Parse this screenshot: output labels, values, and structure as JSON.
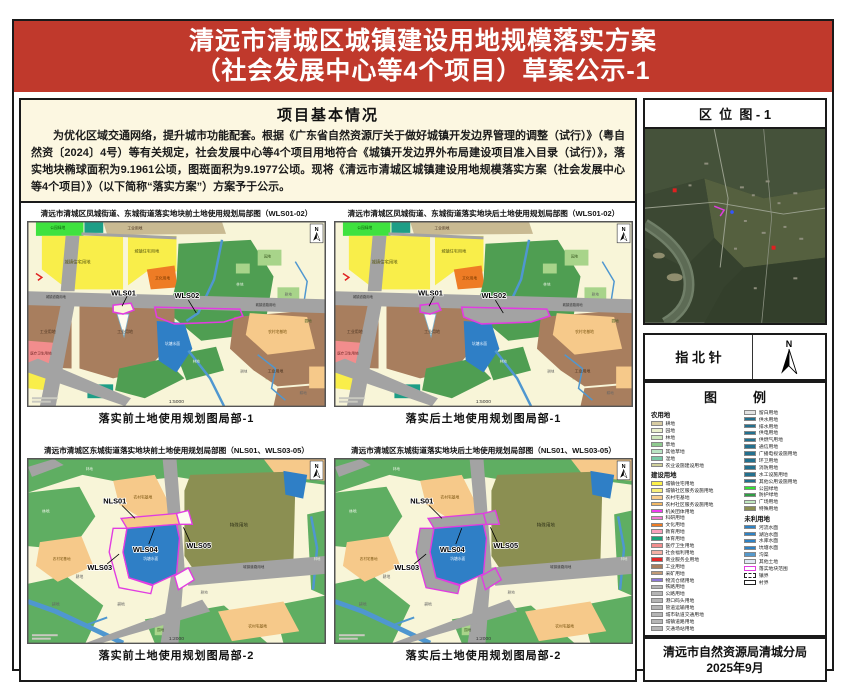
{
  "header": {
    "title_line1": "清远市清城区城镇建设用地规模落实方案",
    "title_line2": "（社会发展中心等4个项目）草案公示-1"
  },
  "info": {
    "title": "项目基本情况",
    "body": "为优化区域交通网络，提升城市功能配套。根据《广东省自然资源厅关于做好城镇开发边界管理的调整（试行）》（粤自然资〔2024〕4号）等有关规定，社会发展中心等4个项目用地符合《城镇开发边界外布局建设项目准入目录（试行）》，落实地块椭球面积为9.1961公顷，图斑面积为9.1977公顷。现将《清远市清城区城镇建设用地规模落实方案（社会发展中心等4个项目）》（以下简称“落实方案”）方案予于公示。"
  },
  "maps": {
    "row1_before": {
      "title": "清远市清城区凤城街道、东城街道落实地块前土地使用规划局部图（WLS01-02）",
      "caption": "落实前土地使用规划图局部-1",
      "scale": "1:5000"
    },
    "row1_after": {
      "title": "清远市清城区凤城街道、东城街道落实地块后土地使用规划局部图（WLS01-02）",
      "caption": "落实后土地使用规划图局部-1",
      "scale": "1:5000"
    },
    "row2_before": {
      "title": "清远市清城区东城街道落实地块前土地使用规划局部图（NLS01、WLS03-05）",
      "caption": "落实前土地使用规划图局部-2",
      "scale": "1:2000"
    },
    "row2_after": {
      "title": "清远市清城区东城街道落实地块后土地使用规划局部图（NLS01、WLS03-05）",
      "caption": "落实后土地使用规划图局部-2",
      "scale": "1:2000"
    },
    "plots_row1": [
      "WLS01",
      "WLS02"
    ],
    "plots_row2": [
      "NLS01",
      "WLS04",
      "WLS05",
      "WLS03"
    ]
  },
  "map_labels": {
    "residential": "城镇住宅用地",
    "industrial": "工业用地",
    "culture": "文化用地",
    "pond": "坑塘水面",
    "rural": "农村宅基地",
    "medical": "医疗卫生用地",
    "park": "公园绿地",
    "road": "城镇道路用地",
    "farm": "耕地",
    "orchard": "园地",
    "forest": "林地",
    "special": "特殊用地",
    "north": "N"
  },
  "palette": {
    "header_red": "#c0392c",
    "map_bg": "#f8f5d8",
    "road_gray": "#a3a3a3",
    "residential_yellow": "#f9ee4a",
    "park_green": "#3fe23f",
    "sport_teal": "#1d9e86",
    "industry_brown": "#a87e5e",
    "culture_orange": "#ee7c25",
    "water_blue": "#2f7fc6",
    "stream_blue": "#4f97d0",
    "forest_green": "#4f9e52",
    "area_green": "#5fae62",
    "orchard_light": "#a8d48a",
    "rural_peach": "#f6c98a",
    "medical_pink": "#f28d8d",
    "special_olive": "#8b8f52",
    "plot_magenta": "#e13ce1",
    "top_tan": "#c9ba92"
  },
  "sidebar": {
    "location_title": "区  位  图 - 1",
    "compass_title": "指 北 针",
    "compass_n": "N",
    "legend_title": "图          例",
    "legend": {
      "columns": [
        {
          "groups": [
            {
              "header": "农用地",
              "items": [
                {
                  "label": "耕地",
                  "color": "#d9cda4"
                },
                {
                  "label": "园地",
                  "color": "#eaf0cd"
                },
                {
                  "label": "林地",
                  "color": "#cde6bc"
                },
                {
                  "label": "草地",
                  "color": "#8fca8f"
                },
                {
                  "label": "其他草地",
                  "color": "#b9e4c4"
                },
                {
                  "label": "湿地",
                  "color": "#79c9a7"
                },
                {
                  "label": "农业设施建设用地",
                  "color": "#cfcf9a"
                }
              ]
            },
            {
              "header": "建设用地",
              "items": [
                {
                  "label": "城镇住宅用地",
                  "color": "#fdf14b"
                },
                {
                  "label": "城镇社区服务设施用地",
                  "color": "#f9ef7a"
                },
                {
                  "label": "农村宅基地",
                  "color": "#f8cd8d"
                },
                {
                  "label": "农村社区服务设施用地",
                  "color": "#f3b865"
                },
                {
                  "label": "机关团体用地",
                  "color": "#f23cf2"
                },
                {
                  "label": "科研用地",
                  "color": "#f07ad0"
                },
                {
                  "label": "文化用地",
                  "color": "#ee7c25"
                },
                {
                  "label": "教育用地",
                  "color": "#f8a0bc"
                },
                {
                  "label": "体育用地",
                  "color": "#19a27a"
                },
                {
                  "label": "医疗卫生用地",
                  "color": "#f28d8d"
                },
                {
                  "label": "社会福利用地",
                  "color": "#f4b0a5"
                },
                {
                  "label": "商业服务业用地",
                  "color": "#e42829"
                },
                {
                  "label": "工业用地",
                  "color": "#a87e5e"
                },
                {
                  "label": "采矿用地",
                  "color": "#c19a76"
                },
                {
                  "label": "物流仓储用地",
                  "color": "#8d78d8"
                },
                {
                  "label": "铁路用地",
                  "color": "#b5b5b5"
                },
                {
                  "label": "公路用地",
                  "color": "#b5b5b5"
                },
                {
                  "label": "港口码头用地",
                  "color": "#b5b5b5"
                },
                {
                  "label": "管道运输用地",
                  "color": "#b5b5b5"
                },
                {
                  "label": "城市轨道交通用地",
                  "color": "#b5b5b5"
                },
                {
                  "label": "城镇道路用地",
                  "color": "#b5b5b5"
                },
                {
                  "label": "交通场站用地",
                  "color": "#b5b5b5"
                }
              ]
            }
          ]
        },
        {
          "groups": [
            {
              "header": "",
              "items": [
                {
                  "label": "留白用地",
                  "color": "#e3e3e3"
                },
                {
                  "label": "供水用地",
                  "color": "#23708e"
                },
                {
                  "label": "排水用地",
                  "color": "#23708e"
                },
                {
                  "label": "供电用地",
                  "color": "#23708e"
                },
                {
                  "label": "供燃气用地",
                  "color": "#23708e"
                },
                {
                  "label": "通信用地",
                  "color": "#23708e"
                },
                {
                  "label": "广播电视设施用地",
                  "color": "#23708e"
                },
                {
                  "label": "环卫用地",
                  "color": "#23708e"
                },
                {
                  "label": "消防用地",
                  "color": "#23708e"
                },
                {
                  "label": "水工设施用地",
                  "color": "#23708e"
                },
                {
                  "label": "其他公用设施用地",
                  "color": "#23708e"
                },
                {
                  "label": "公园绿地",
                  "color": "#33e133"
                },
                {
                  "label": "防护绿地",
                  "color": "#2f9e44"
                },
                {
                  "label": "广场用地",
                  "color": "#bfe8bf"
                },
                {
                  "label": "特殊用地",
                  "color": "#8b8f52"
                }
              ]
            },
            {
              "header": "未利用地",
              "items": [
                {
                  "label": "河流水面",
                  "color": "#2e82c4"
                },
                {
                  "label": "湖泊水面",
                  "color": "#2e82c4"
                },
                {
                  "label": "水库水面",
                  "color": "#2e82c4"
                },
                {
                  "label": "坑塘水面",
                  "color": "#2e82c4"
                },
                {
                  "label": "沟渠",
                  "color": "#5599cc"
                },
                {
                  "label": "其他土地",
                  "color": "#dfe9f2"
                },
                {
                  "label": "落实地块范围",
                  "type": "outline-magenta"
                },
                {
                  "label": "镇界",
                  "type": "outline-dashed"
                },
                {
                  "label": "村界",
                  "type": "outline-plain"
                }
              ]
            }
          ]
        }
      ]
    },
    "footer_line1": "清远市自然资源局清城分局",
    "footer_line2": "2025年9月"
  }
}
